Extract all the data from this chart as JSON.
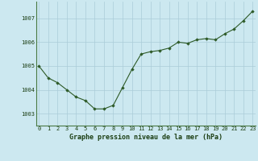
{
  "x": [
    0,
    1,
    2,
    3,
    4,
    5,
    6,
    7,
    8,
    9,
    10,
    11,
    12,
    13,
    14,
    15,
    16,
    17,
    18,
    19,
    20,
    21,
    22,
    23
  ],
  "y": [
    1005.0,
    1004.5,
    1004.3,
    1004.0,
    1003.7,
    1003.55,
    1003.2,
    1003.2,
    1003.35,
    1004.1,
    1004.85,
    1005.5,
    1005.6,
    1005.65,
    1005.75,
    1006.0,
    1005.95,
    1006.1,
    1006.15,
    1006.1,
    1006.35,
    1006.55,
    1006.9,
    1007.3
  ],
  "line_color": "#2d5a27",
  "marker": "D",
  "marker_size": 1.8,
  "linewidth": 0.8,
  "bg_color": "#cce8f0",
  "grid_color": "#aaccd8",
  "xlabel": "Graphe pression niveau de la mer (hPa)",
  "xlabel_color": "#1a3d12",
  "xlabel_fontsize": 6.0,
  "tick_color": "#1a3d12",
  "tick_fontsize": 5.0,
  "ylim": [
    1002.5,
    1007.7
  ],
  "xlim": [
    -0.3,
    23.3
  ],
  "yticks": [
    1003,
    1004,
    1005,
    1006,
    1007
  ],
  "xticks": [
    0,
    1,
    2,
    3,
    4,
    5,
    6,
    7,
    8,
    9,
    10,
    11,
    12,
    13,
    14,
    15,
    16,
    17,
    18,
    19,
    20,
    21,
    22,
    23
  ]
}
